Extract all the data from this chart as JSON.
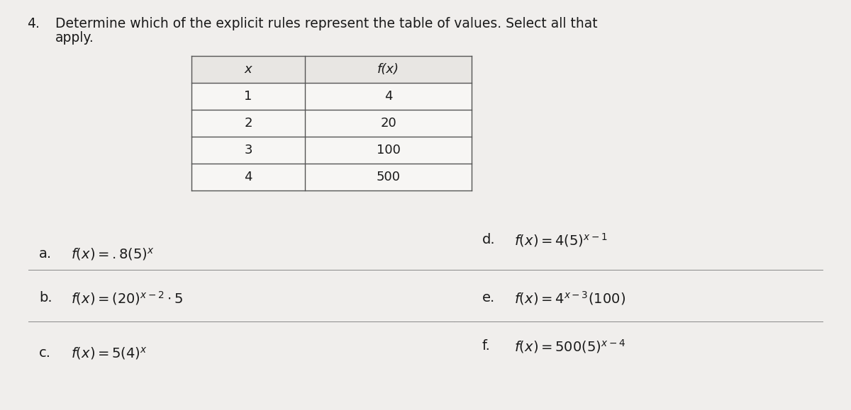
{
  "title_number": "4.",
  "title_line1": "Determine which of the explicit rules represent the table of values. Select all that",
  "title_line2": "apply.",
  "table_x_header": "x",
  "table_fx_header": "f(x)",
  "table_x_values": [
    "1",
    "2",
    "3",
    "4"
  ],
  "table_fx_values": [
    "4",
    "20",
    "100",
    "500"
  ],
  "options": [
    {
      "label": "a.",
      "formula": "$f(x) = .8(5)^x$"
    },
    {
      "label": "b.",
      "formula": "$f(x) = (20)^{x-2} \\cdot 5$"
    },
    {
      "label": "c.",
      "formula": "$f(x) = 5(4)^x$"
    },
    {
      "label": "d.",
      "formula": "$f(x) = 4(5)^{x-1}$"
    },
    {
      "label": "e.",
      "formula": "$f(x) = 4^{x-3}(100)$"
    },
    {
      "label": "f.",
      "formula": "$f(x) = 500(5)^{x-4}$"
    }
  ],
  "bg_color": "#f0eeec",
  "table_bg_white": "#f7f6f4",
  "table_bg_header": "#e8e6e3",
  "table_border_color": "#555555",
  "text_color": "#1a1a1a",
  "font_size_title": 13.5,
  "font_size_table": 13,
  "font_size_options": 14
}
